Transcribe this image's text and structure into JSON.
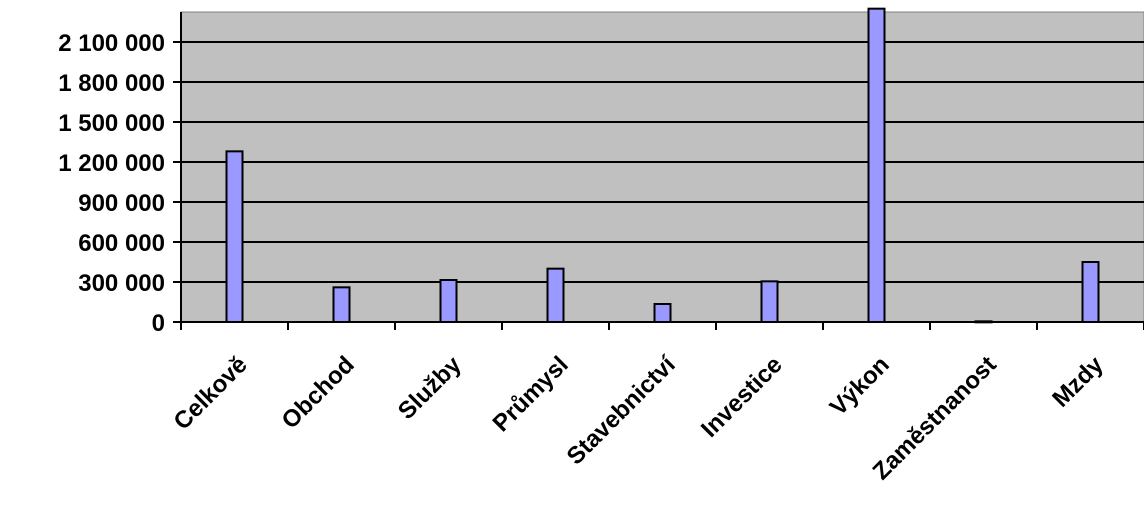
{
  "chart_data": {
    "type": "bar",
    "categories": [
      "Celkově",
      "Obchod",
      "Služby",
      "Průmysl",
      "Stavebnictví",
      "Investice",
      "Výkon",
      "Zaměstnanost",
      "Mzdy"
    ],
    "series": [
      {
        "values": [
          1280000,
          260000,
          315000,
          400000,
          135000,
          305000,
          2350000,
          5000,
          450000
        ]
      }
    ],
    "yticks": [
      0,
      300000,
      600000,
      900000,
      1200000,
      1500000,
      1800000,
      2100000
    ],
    "ytick_labels": [
      "0",
      "300 000",
      "600 000",
      "900 000",
      "1 200 000",
      "1 500 000",
      "1 800 000",
      "2 100 000"
    ],
    "ylim": [
      0,
      2325000
    ],
    "grid": true,
    "legend": "none",
    "colors": {
      "plot_background": "#c0c0c0",
      "bar_fill": "#9999ff",
      "bar_stroke": "#000000",
      "grid": "#000000"
    }
  }
}
